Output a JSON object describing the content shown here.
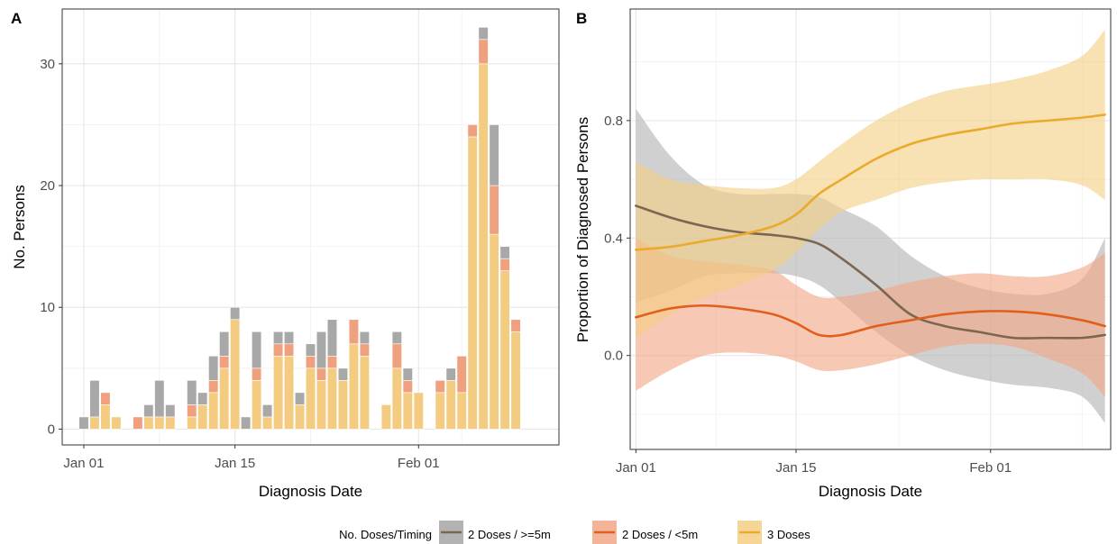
{
  "legend": {
    "title": "No. Doses/Timing",
    "items": [
      {
        "label": "2 Doses / >=5m",
        "fill": "#b3b3b3",
        "line": "#7b6652"
      },
      {
        "label": "2 Doses / <5m",
        "fill": "#f4b49a",
        "line": "#e05f1c"
      },
      {
        "label": "3 Doses",
        "fill": "#f6d697",
        "line": "#ebaa2c"
      }
    ]
  },
  "colors": {
    "bar_gray": "#a8a8a8",
    "bar_salmon": "#efa07e",
    "bar_yellow": "#f3cc82",
    "band_gray": "#b3b3b3",
    "band_salmon": "#f2a685",
    "band_yellow": "#f4cf85",
    "line_gray": "#7b6652",
    "line_salmon": "#e05f1c",
    "line_yellow": "#ebaa2c"
  },
  "chart_data": [
    {
      "panel": "A",
      "type": "bar",
      "stacked": true,
      "xlabel": "Diagnosis Date",
      "ylabel": "No. Persons",
      "x_ticks": [
        {
          "day": 0,
          "label": "Jan 01"
        },
        {
          "day": 14,
          "label": "Jan 15"
        },
        {
          "day": 31,
          "label": "Feb 01"
        }
      ],
      "y_ticks": [
        0,
        10,
        20,
        30
      ],
      "xlim": [
        -2,
        44
      ],
      "ylim": [
        -1.3,
        34.5
      ],
      "grid": true,
      "days": [
        0,
        1,
        2,
        3,
        4,
        5,
        6,
        7,
        8,
        9,
        10,
        11,
        12,
        13,
        14,
        15,
        16,
        17,
        18,
        19,
        20,
        21,
        22,
        23,
        24,
        25,
        26,
        27,
        28,
        29,
        30,
        31,
        32,
        33,
        34,
        35,
        36,
        37,
        38,
        39,
        40,
        41
      ],
      "series": [
        {
          "name": "3 Doses",
          "values": [
            0,
            1,
            2,
            1,
            0,
            0,
            1,
            1,
            1,
            0,
            1,
            2,
            3,
            5,
            9,
            0,
            4,
            1,
            6,
            6,
            2,
            5,
            4,
            5,
            4,
            7,
            6,
            0,
            2,
            5,
            3,
            3,
            0,
            3,
            4,
            3,
            24,
            30,
            16,
            13,
            8,
            0
          ]
        },
        {
          "name": "2 Doses / <5m",
          "values": [
            0,
            0,
            1,
            0,
            0,
            1,
            0,
            0,
            0,
            0,
            1,
            0,
            1,
            1,
            0,
            0,
            1,
            0,
            1,
            1,
            0,
            1,
            1,
            1,
            0,
            2,
            1,
            0,
            0,
            2,
            1,
            0,
            0,
            1,
            0,
            3,
            1,
            2,
            4,
            1,
            1,
            0
          ]
        },
        {
          "name": "2 Doses / >=5m",
          "values": [
            1,
            3,
            0,
            0,
            0,
            0,
            1,
            3,
            1,
            0,
            2,
            1,
            2,
            2,
            1,
            1,
            3,
            1,
            1,
            1,
            1,
            1,
            3,
            3,
            1,
            0,
            1,
            0,
            0,
            1,
            1,
            0,
            0,
            0,
            1,
            0,
            0,
            1,
            5,
            1,
            0,
            0
          ]
        }
      ]
    },
    {
      "panel": "B",
      "type": "line",
      "xlabel": "Diagnosis Date",
      "ylabel": "Proportion of Diagnosed Persons",
      "x_ticks": [
        {
          "day": 0,
          "label": "Jan 01"
        },
        {
          "day": 14,
          "label": "Jan 15"
        },
        {
          "day": 31,
          "label": "Feb 01"
        }
      ],
      "y_ticks": [
        0.0,
        0.4,
        0.8
      ],
      "y_tick_labels": [
        "0.0",
        "0.4",
        "0.8"
      ],
      "xlim": [
        -0.5,
        41.5
      ],
      "ylim": [
        -0.32,
        1.18
      ],
      "grid": true,
      "x": [
        0,
        3,
        6,
        9,
        12,
        14,
        16,
        18,
        21,
        24,
        27,
        30,
        33,
        36,
        39,
        41
      ],
      "series": [
        {
          "name": "2 Doses / >=5m",
          "values": [
            0.51,
            0.47,
            0.44,
            0.42,
            0.41,
            0.4,
            0.38,
            0.33,
            0.24,
            0.14,
            0.1,
            0.08,
            0.06,
            0.06,
            0.06,
            0.07
          ],
          "lower": [
            0.18,
            0.22,
            0.27,
            0.28,
            0.28,
            0.27,
            0.24,
            0.18,
            0.08,
            0.0,
            -0.05,
            -0.08,
            -0.1,
            -0.11,
            -0.14,
            -0.23
          ],
          "upper": [
            0.84,
            0.68,
            0.58,
            0.55,
            0.55,
            0.55,
            0.54,
            0.5,
            0.44,
            0.34,
            0.27,
            0.23,
            0.21,
            0.21,
            0.26,
            0.4
          ]
        },
        {
          "name": "2 Doses / <5m",
          "values": [
            0.13,
            0.16,
            0.17,
            0.16,
            0.14,
            0.11,
            0.07,
            0.07,
            0.1,
            0.12,
            0.14,
            0.15,
            0.15,
            0.14,
            0.12,
            0.1
          ],
          "lower": [
            -0.12,
            -0.05,
            0.0,
            0.01,
            0.0,
            -0.02,
            -0.05,
            -0.05,
            -0.03,
            0.0,
            0.03,
            0.04,
            0.03,
            -0.01,
            -0.06,
            -0.14
          ],
          "upper": [
            0.4,
            0.34,
            0.32,
            0.31,
            0.29,
            0.24,
            0.2,
            0.2,
            0.22,
            0.25,
            0.27,
            0.28,
            0.27,
            0.27,
            0.3,
            0.35
          ]
        },
        {
          "name": "3 Doses",
          "values": [
            0.36,
            0.37,
            0.39,
            0.41,
            0.44,
            0.48,
            0.55,
            0.6,
            0.67,
            0.72,
            0.75,
            0.77,
            0.79,
            0.8,
            0.81,
            0.82
          ],
          "lower": [
            0.06,
            0.14,
            0.2,
            0.24,
            0.29,
            0.35,
            0.43,
            0.49,
            0.53,
            0.57,
            0.59,
            0.6,
            0.6,
            0.6,
            0.58,
            0.53
          ],
          "upper": [
            0.66,
            0.6,
            0.58,
            0.57,
            0.57,
            0.6,
            0.66,
            0.72,
            0.8,
            0.86,
            0.9,
            0.92,
            0.94,
            0.97,
            1.02,
            1.11
          ]
        }
      ]
    }
  ]
}
